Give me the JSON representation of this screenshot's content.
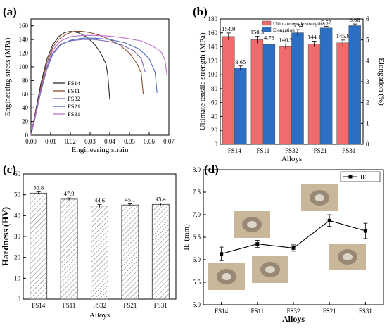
{
  "colors": {
    "fs14": "#2b2b2b",
    "fs11": "#8b4a2b",
    "fs32": "#7e6bb8",
    "fs21": "#4f6db8",
    "fs31": "#c06fcf",
    "uts": "#f06b6b",
    "elong": "#2a6fc4",
    "hardness_fill": "#ffffff",
    "ie_line": "#000000",
    "img_bg": "#c9b79a",
    "img_dimple": "#6f655a"
  },
  "panels": {
    "a_label": "(a)",
    "b_label": "(b)",
    "c_label": "(c)",
    "d_label": "(d)"
  },
  "chart_data": [
    {
      "id": "a",
      "type": "line",
      "xlabel": "Engineering strain",
      "ylabel": "Engineering stress (MPa)",
      "xlim": [
        0.0,
        0.07
      ],
      "ylim": [
        0,
        170
      ],
      "xticks": [
        "0.00",
        "0.01",
        "0.02",
        "0.03",
        "0.04",
        "0.05",
        "0.06",
        "0.07"
      ],
      "yticks": [
        "0",
        "20",
        "40",
        "60",
        "80",
        "100",
        "120",
        "140",
        "160"
      ],
      "legend_position": "center-left",
      "series": [
        {
          "name": "FS14",
          "colorKey": "fs14",
          "x": [
            0,
            0.002,
            0.005,
            0.008,
            0.011,
            0.014,
            0.017,
            0.02,
            0.024,
            0.028,
            0.032,
            0.035,
            0.038,
            0.039,
            0.04
          ],
          "y": [
            0,
            30,
            75,
            110,
            132,
            144,
            150,
            152,
            150,
            144,
            134,
            122,
            105,
            88,
            52
          ]
        },
        {
          "name": "FS11",
          "colorKey": "fs11",
          "x": [
            0,
            0.002,
            0.005,
            0.008,
            0.011,
            0.014,
            0.018,
            0.022,
            0.026,
            0.03,
            0.035,
            0.04,
            0.045,
            0.05,
            0.054,
            0.056,
            0.057
          ],
          "y": [
            0,
            28,
            70,
            105,
            128,
            140,
            148,
            152,
            152,
            150,
            146,
            140,
            132,
            120,
            104,
            90,
            60
          ]
        },
        {
          "name": "FS32",
          "colorKey": "fs32",
          "x": [
            0,
            0.002,
            0.005,
            0.008,
            0.011,
            0.015,
            0.02,
            0.026,
            0.032,
            0.04,
            0.046,
            0.052,
            0.056,
            0.058
          ],
          "y": [
            0,
            25,
            65,
            98,
            120,
            133,
            138,
            140,
            140,
            137,
            132,
            124,
            112,
            92
          ]
        },
        {
          "name": "FS21",
          "colorKey": "fs21",
          "x": [
            0,
            0.002,
            0.005,
            0.008,
            0.011,
            0.015,
            0.02,
            0.026,
            0.032,
            0.04,
            0.048,
            0.055,
            0.06,
            0.063,
            0.064
          ],
          "y": [
            0,
            24,
            63,
            96,
            118,
            132,
            139,
            142,
            142,
            140,
            135,
            126,
            112,
            92,
            62
          ]
        },
        {
          "name": "FS31",
          "colorKey": "fs31",
          "x": [
            0,
            0.002,
            0.005,
            0.008,
            0.011,
            0.015,
            0.02,
            0.026,
            0.032,
            0.04,
            0.048,
            0.056,
            0.062,
            0.066,
            0.068,
            0.069
          ],
          "y": [
            0,
            26,
            66,
            100,
            124,
            138,
            144,
            146,
            146,
            145,
            142,
            138,
            130,
            122,
            110,
            88
          ]
        }
      ]
    },
    {
      "id": "b",
      "type": "bar",
      "xlabel": "Alloys",
      "ylabel": "Ultimate tensile strength (MPa)",
      "y2label": "Elongation (%)",
      "categories": [
        "FS14",
        "FS11",
        "FS32",
        "FS21",
        "FS31"
      ],
      "ylim": [
        0,
        180
      ],
      "y2lim": [
        0,
        6
      ],
      "yticks": [
        "0",
        "20",
        "40",
        "60",
        "80",
        "100",
        "120",
        "140",
        "160",
        "180"
      ],
      "y2ticks": [
        "0",
        "1",
        "2",
        "3",
        "4",
        "5",
        "6"
      ],
      "legend_position": "top-center",
      "series": [
        {
          "name": "Ultimate tensile strength",
          "colorKey": "uts",
          "axis": "left",
          "values": [
            154.9,
            150.3,
            140.3,
            144.1,
            145.8
          ],
          "errors": [
            5,
            5,
            4,
            4,
            4
          ],
          "labels": [
            "154.9",
            "150.3",
            "140.3",
            "144.1",
            "145.8"
          ]
        },
        {
          "name": "Elongation",
          "colorKey": "elong",
          "axis": "right",
          "values": [
            3.65,
            4.78,
            5.34,
            5.57,
            5.68
          ],
          "errors": [
            0.1,
            0.12,
            0.15,
            0.08,
            0.08
          ],
          "labels": [
            "3.65",
            "4.78",
            "5.34",
            "5.57",
            "5.68"
          ]
        }
      ]
    },
    {
      "id": "c",
      "type": "bar",
      "xlabel": "Alloys",
      "ylabel": "Hardness (HV)",
      "categories": [
        "FS14",
        "FS11",
        "FS32",
        "FS21",
        "FS31"
      ],
      "ylim": [
        0,
        60
      ],
      "yticks": [
        "0",
        "10",
        "20",
        "30",
        "40",
        "50",
        "60"
      ],
      "values": [
        50.8,
        47.9,
        44.6,
        45.1,
        45.4
      ],
      "errors": [
        0.6,
        0.6,
        0.7,
        0.6,
        0.6
      ],
      "labels": [
        "50.8",
        "47.9",
        "44.6",
        "45.1",
        "45.4"
      ]
    },
    {
      "id": "d",
      "type": "line",
      "xlabel": "Alloys",
      "ylabel": "IE (mm)",
      "categories": [
        "FS14",
        "FS11",
        "FS32",
        "FS21",
        "FS31"
      ],
      "ylim": [
        5.0,
        8.0
      ],
      "yticks": [
        "5.0",
        "5.5",
        "6.0",
        "6.5",
        "7.0",
        "7.5",
        "8.0"
      ],
      "legend_position": "top-right",
      "series": [
        {
          "name": "IE",
          "colorKey": "ie_line",
          "values": [
            6.13,
            6.35,
            6.26,
            6.87,
            6.64
          ],
          "errors": [
            0.15,
            0.08,
            0.07,
            0.13,
            0.17
          ]
        }
      ]
    }
  ]
}
